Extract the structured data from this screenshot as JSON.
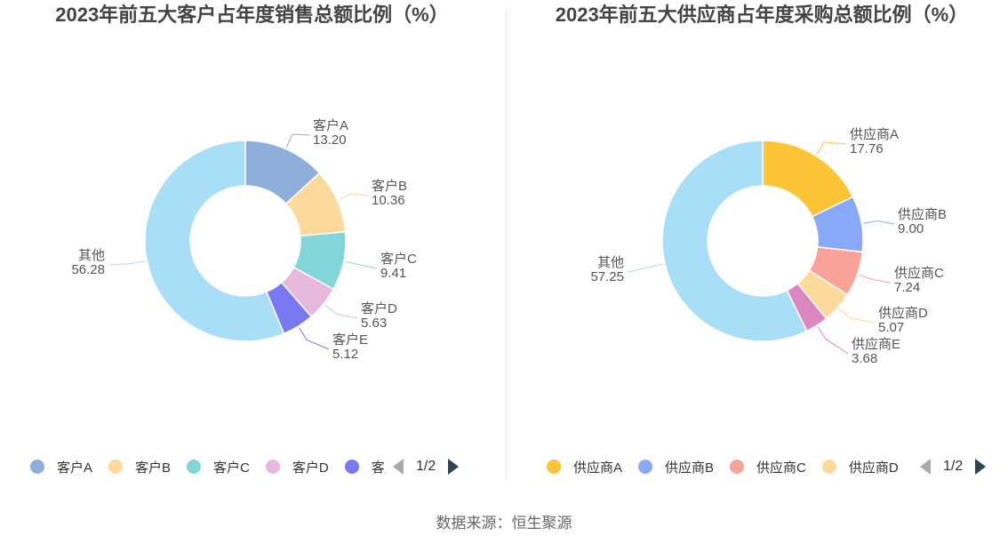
{
  "source_label": "数据来源：恒生聚源",
  "chart_data": [
    {
      "type": "pie",
      "title": "2023年前五大客户占年度销售总额比例（%）",
      "slices": [
        {
          "name": "客户A",
          "value": 13.2,
          "color": "#8eaedb"
        },
        {
          "name": "客户B",
          "value": 10.36,
          "color": "#fdd99b"
        },
        {
          "name": "客户C",
          "value": 9.41,
          "color": "#82d6da"
        },
        {
          "name": "客户D",
          "value": 5.63,
          "color": "#e6b8dc"
        },
        {
          "name": "客户E",
          "value": 5.12,
          "color": "#7878f0"
        },
        {
          "name": "其他",
          "value": 56.28,
          "color": "#a8def6"
        }
      ],
      "legend": {
        "items": [
          "客户A",
          "客户B",
          "客户C",
          "客户D",
          "客户E"
        ],
        "page": "1/2",
        "placement": "bottom"
      }
    },
    {
      "type": "pie",
      "title": "2023年前五大供应商占年度采购总额比例（%）",
      "slices": [
        {
          "name": "供应商A",
          "value": 17.76,
          "color": "#fdc535"
        },
        {
          "name": "供应商B",
          "value": 9.0,
          "color": "#88a8f8"
        },
        {
          "name": "供应商C",
          "value": 7.24,
          "color": "#f8a29a"
        },
        {
          "name": "供应商D",
          "value": 5.07,
          "color": "#fdd99b"
        },
        {
          "name": "供应商E",
          "value": 3.68,
          "color": "#dc88c0"
        },
        {
          "name": "其他",
          "value": 57.25,
          "color": "#a8def6"
        }
      ],
      "legend": {
        "items": [
          "供应商A",
          "供应商B",
          "供应商C",
          "供应商D"
        ],
        "page": "1/2",
        "placement": "bottom"
      }
    }
  ]
}
